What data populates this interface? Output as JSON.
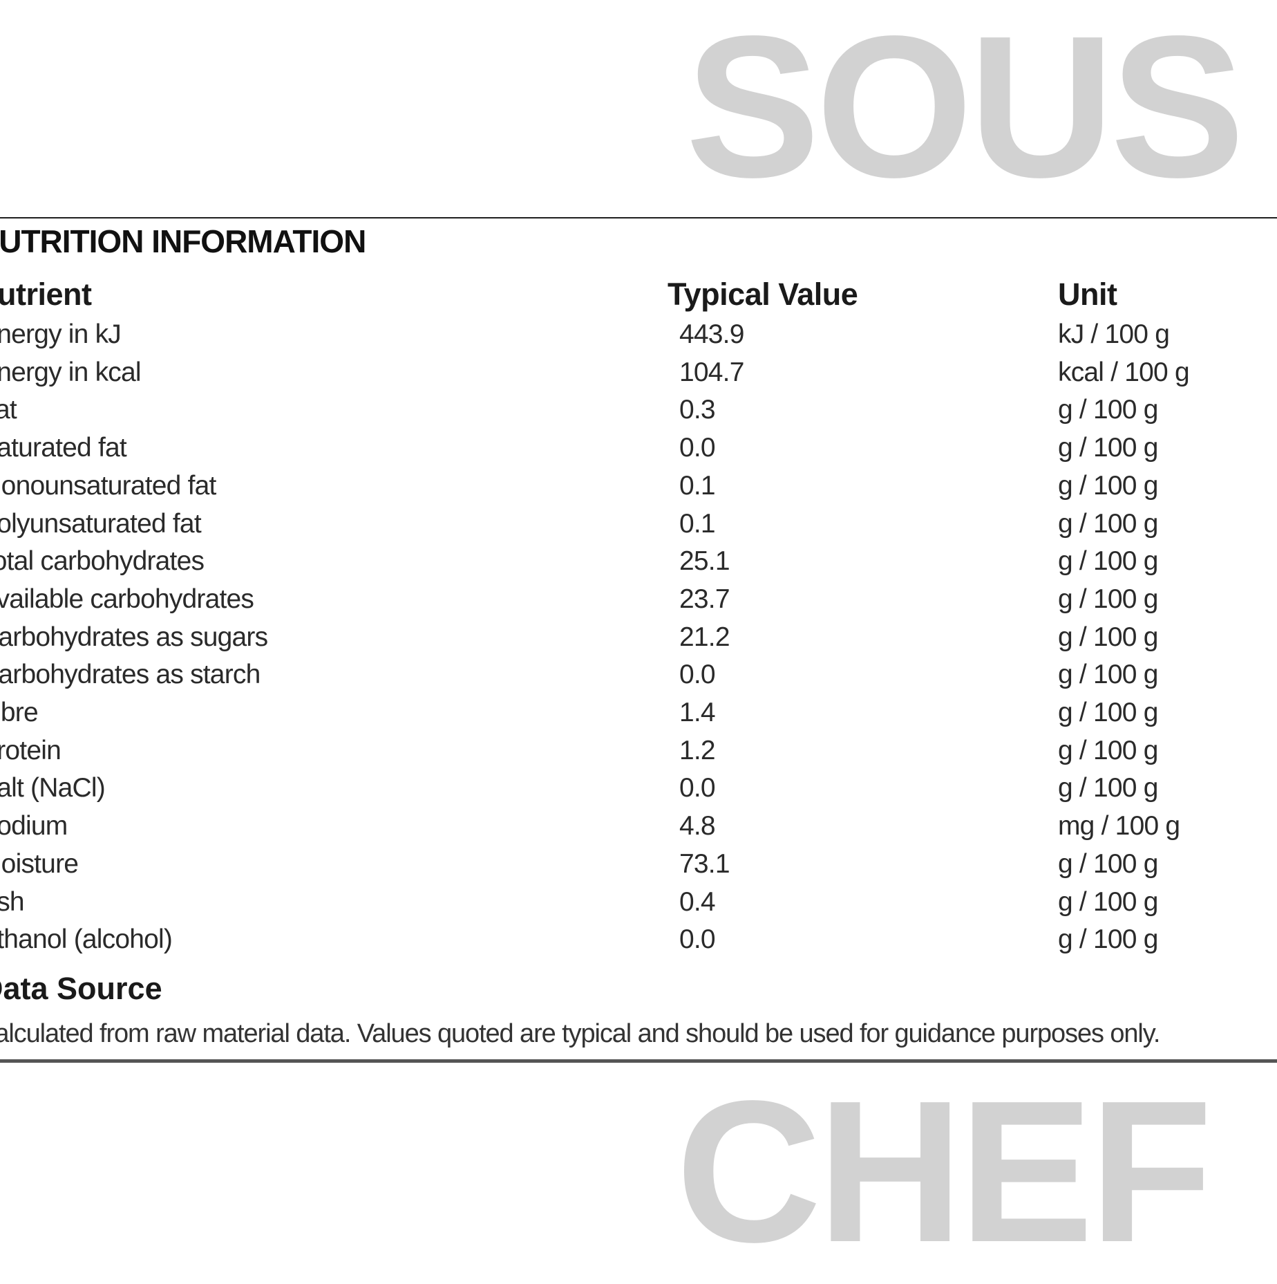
{
  "watermark": {
    "line1": "SOUS",
    "line2": "CHEF",
    "color": "#d2d2d2"
  },
  "title": "NUTRITION INFORMATION",
  "headers": {
    "nutrient": "Nutrient",
    "value": "Typical Value",
    "unit": "Unit"
  },
  "rows": [
    {
      "nutrient": "Energy in kJ",
      "value": "443.9",
      "unit": "kJ / 100 g"
    },
    {
      "nutrient": "Energy in kcal",
      "value": "104.7",
      "unit": "kcal / 100 g"
    },
    {
      "nutrient": "Fat",
      "value": "0.3",
      "unit": "g / 100 g"
    },
    {
      "nutrient": "Saturated fat",
      "value": "0.0",
      "unit": "g / 100 g"
    },
    {
      "nutrient": "Monounsaturated fat",
      "value": "0.1",
      "unit": "g / 100 g"
    },
    {
      "nutrient": "Polyunsaturated fat",
      "value": "0.1",
      "unit": "g / 100 g"
    },
    {
      "nutrient": "Total carbohydrates",
      "value": "25.1",
      "unit": "g / 100 g"
    },
    {
      "nutrient": "Available carbohydrates",
      "value": "23.7",
      "unit": "g / 100 g"
    },
    {
      "nutrient": "Carbohydrates as sugars",
      "value": "21.2",
      "unit": "g / 100 g"
    },
    {
      "nutrient": "Carbohydrates as starch",
      "value": "0.0",
      "unit": "g / 100 g"
    },
    {
      "nutrient": "Fibre",
      "value": "1.4",
      "unit": "g / 100 g"
    },
    {
      "nutrient": "Protein",
      "value": "1.2",
      "unit": "g / 100 g"
    },
    {
      "nutrient": "Salt (NaCl)",
      "value": "0.0",
      "unit": "g / 100 g"
    },
    {
      "nutrient": "Sodium",
      "value": "4.8",
      "unit": "mg / 100 g"
    },
    {
      "nutrient": "Moisture",
      "value": "73.1",
      "unit": "g / 100 g"
    },
    {
      "nutrient": "Ash",
      "value": "0.4",
      "unit": "g / 100 g"
    },
    {
      "nutrient": "Ethanol (alcohol)",
      "value": "0.0",
      "unit": "g / 100 g"
    }
  ],
  "data_source": {
    "title": "Data Source",
    "text": "Calculated from raw material data. Values quoted are typical and should be used for guidance purposes only."
  }
}
